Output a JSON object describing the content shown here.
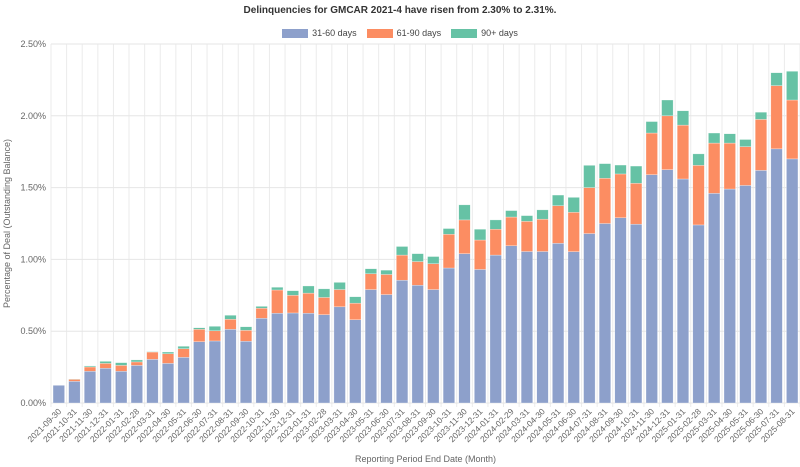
{
  "chart_data": {
    "type": "bar",
    "stacked": true,
    "title": "Delinquencies for GMCAR 2021-4 have risen from 2.30% to 2.31%.",
    "xlabel": "Reporting Period End Date (Month)",
    "ylabel": "Percentage of Deal (Outstanding Balance)",
    "ylim": [
      0,
      2.5
    ],
    "yticks": [
      "0.00%",
      "0.50%",
      "1.00%",
      "1.50%",
      "2.00%",
      "2.50%"
    ],
    "ytick_values": [
      0,
      0.5,
      1.0,
      1.5,
      2.0,
      2.5
    ],
    "grid": true,
    "legend_position": "top-center",
    "categories": [
      "2021-09-30",
      "2021-10-31",
      "2021-11-30",
      "2021-12-31",
      "2022-01-31",
      "2022-02-28",
      "2022-03-31",
      "2022-04-30",
      "2022-05-31",
      "2022-06-30",
      "2022-07-31",
      "2022-08-31",
      "2022-09-30",
      "2022-10-31",
      "2022-11-30",
      "2022-12-31",
      "2023-01-31",
      "2023-02-28",
      "2023-03-31",
      "2023-04-30",
      "2023-05-31",
      "2023-06-30",
      "2023-07-31",
      "2023-08-31",
      "2023-09-30",
      "2023-10-31",
      "2023-11-30",
      "2023-12-31",
      "2024-01-31",
      "2024-02-29",
      "2024-03-31",
      "2024-04-30",
      "2024-05-31",
      "2024-06-30",
      "2024-07-31",
      "2024-08-31",
      "2024-09-30",
      "2024-10-31",
      "2024-11-30",
      "2024-12-31",
      "2025-01-31",
      "2025-02-28",
      "2025-03-31",
      "2025-04-30",
      "2025-05-31",
      "2025-06-30",
      "2025-07-31",
      "2025-08-31"
    ],
    "series": [
      {
        "name": "31-60 days",
        "color": "#8da0cb",
        "values": [
          0.123,
          0.151,
          0.221,
          0.242,
          0.221,
          0.262,
          0.304,
          0.276,
          0.318,
          0.427,
          0.432,
          0.513,
          0.43,
          0.59,
          0.625,
          0.627,
          0.625,
          0.615,
          0.67,
          0.58,
          0.79,
          0.755,
          0.855,
          0.82,
          0.79,
          0.94,
          1.04,
          0.93,
          1.03,
          1.095,
          1.055,
          1.055,
          1.112,
          1.054,
          1.18,
          1.25,
          1.29,
          1.245,
          1.59,
          1.625,
          1.56,
          1.24,
          1.46,
          1.49,
          1.515,
          1.62,
          1.77,
          1.7
        ]
      },
      {
        "name": "61-90 days",
        "color": "#fc8d62",
        "values": [
          0.0,
          0.014,
          0.03,
          0.034,
          0.041,
          0.024,
          0.051,
          0.067,
          0.06,
          0.086,
          0.071,
          0.07,
          0.076,
          0.07,
          0.162,
          0.123,
          0.14,
          0.12,
          0.12,
          0.115,
          0.11,
          0.14,
          0.175,
          0.165,
          0.18,
          0.235,
          0.235,
          0.205,
          0.18,
          0.2,
          0.21,
          0.225,
          0.262,
          0.274,
          0.32,
          0.315,
          0.305,
          0.285,
          0.29,
          0.375,
          0.375,
          0.415,
          0.35,
          0.32,
          0.27,
          0.355,
          0.44,
          0.41
        ]
      },
      {
        "name": "90+ days",
        "color": "#66c2a5",
        "values": [
          0.0,
          0.002,
          0.007,
          0.014,
          0.019,
          0.014,
          0.003,
          0.012,
          0.017,
          0.011,
          0.031,
          0.028,
          0.025,
          0.013,
          0.019,
          0.032,
          0.05,
          0.06,
          0.05,
          0.045,
          0.035,
          0.03,
          0.06,
          0.055,
          0.05,
          0.04,
          0.105,
          0.075,
          0.065,
          0.045,
          0.04,
          0.065,
          0.074,
          0.104,
          0.155,
          0.102,
          0.062,
          0.12,
          0.08,
          0.11,
          0.1,
          0.08,
          0.07,
          0.065,
          0.05,
          0.05,
          0.09,
          0.2
        ]
      }
    ]
  }
}
